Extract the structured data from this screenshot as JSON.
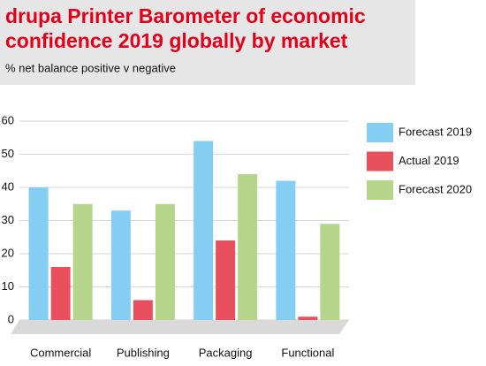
{
  "chart_data": {
    "type": "bar",
    "title": [
      "drupa Printer Barometer of economic",
      "confidence 2019 globally by market"
    ],
    "subtitle": "% net balance positive v negative",
    "categories": [
      "Commercial",
      "Publishing",
      "Packaging",
      "Functional"
    ],
    "series": [
      {
        "name": "Forecast 2019",
        "color": "#84cdf3",
        "values": [
          40,
          33,
          54,
          42
        ]
      },
      {
        "name": "Actual 2019",
        "color": "#e7505c",
        "values": [
          16,
          6,
          24,
          1
        ]
      },
      {
        "name": "Forecast 2020",
        "color": "#b4d58a",
        "values": [
          35,
          35,
          44,
          29
        ]
      }
    ],
    "ylim": [
      0,
      60
    ],
    "yticks": [
      0,
      10,
      20,
      30,
      40,
      50,
      60
    ],
    "grid": true,
    "legend": "right"
  }
}
